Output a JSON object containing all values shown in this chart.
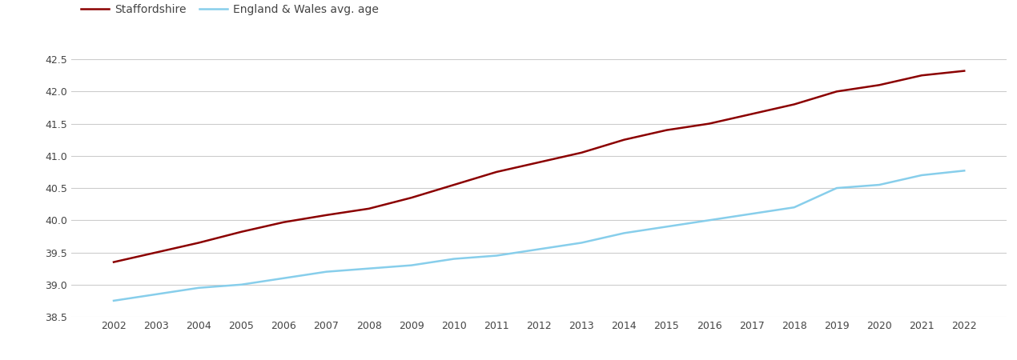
{
  "years": [
    2002,
    2003,
    2004,
    2005,
    2006,
    2007,
    2008,
    2009,
    2010,
    2011,
    2012,
    2013,
    2014,
    2015,
    2016,
    2017,
    2018,
    2019,
    2020,
    2021,
    2022
  ],
  "staffordshire": [
    39.35,
    39.5,
    39.65,
    39.82,
    39.97,
    40.08,
    40.18,
    40.35,
    40.55,
    40.75,
    40.9,
    41.05,
    41.25,
    41.4,
    41.5,
    41.65,
    41.8,
    42.0,
    42.1,
    42.25,
    42.32
  ],
  "england_wales": [
    38.75,
    38.85,
    38.95,
    39.0,
    39.1,
    39.2,
    39.25,
    39.3,
    39.4,
    39.45,
    39.55,
    39.65,
    39.8,
    39.9,
    40.0,
    40.1,
    40.2,
    40.5,
    40.55,
    40.7,
    40.77
  ],
  "staffordshire_color": "#8B0000",
  "england_wales_color": "#87CEEB",
  "staffordshire_label": "Staffordshire",
  "england_wales_label": "England & Wales avg. age",
  "ylim": [
    38.5,
    42.75
  ],
  "yticks": [
    38.5,
    39.0,
    39.5,
    40.0,
    40.5,
    41.0,
    41.5,
    42.0,
    42.5
  ],
  "background_color": "#ffffff",
  "grid_color": "#cccccc",
  "line_width": 1.8,
  "legend_fontsize": 10,
  "tick_fontsize": 9,
  "text_color": "#444444"
}
